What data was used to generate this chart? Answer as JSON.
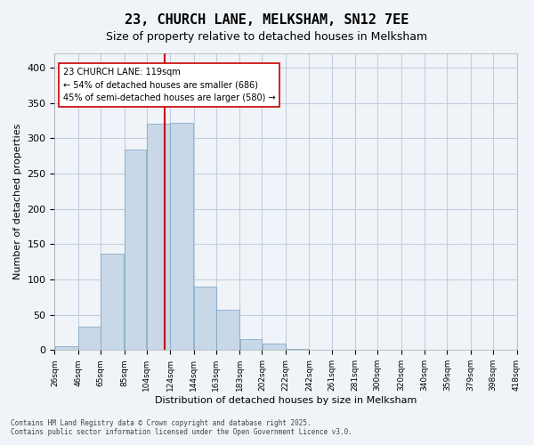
{
  "title_line1": "23, CHURCH LANE, MELKSHAM, SN12 7EE",
  "title_line2": "Size of property relative to detached houses in Melksham",
  "xlabel": "Distribution of detached houses by size in Melksham",
  "ylabel": "Number of detached properties",
  "bar_color": "#c8d8e8",
  "bar_edge_color": "#7aa0c0",
  "grid_color": "#c0cfe0",
  "background_color": "#f0f4f8",
  "vline_color": "#cc0000",
  "vline_x": 119,
  "annotation_text": "23 CHURCH LANE: 119sqm\n← 54% of detached houses are smaller (686)\n45% of semi-detached houses are larger (580) →",
  "annotation_box_color": "#ffffff",
  "annotation_box_edge": "#cc0000",
  "footer_line1": "Contains HM Land Registry data © Crown copyright and database right 2025.",
  "footer_line2": "Contains public sector information licensed under the Open Government Licence v3.0.",
  "bins": [
    26,
    46,
    65,
    85,
    104,
    124,
    144,
    163,
    183,
    202,
    222,
    242,
    261,
    281,
    300,
    320,
    340,
    359,
    379,
    398,
    418
  ],
  "bin_labels": [
    "26sqm",
    "46sqm",
    "65sqm",
    "85sqm",
    "104sqm",
    "124sqm",
    "144sqm",
    "163sqm",
    "183sqm",
    "202sqm",
    "222sqm",
    "242sqm",
    "261sqm",
    "281sqm",
    "300sqm",
    "320sqm",
    "340sqm",
    "359sqm",
    "379sqm",
    "398sqm",
    "418sqm"
  ],
  "counts": [
    5,
    33,
    137,
    284,
    320,
    322,
    90,
    57,
    16,
    9,
    2,
    1,
    0,
    1,
    0,
    1,
    0,
    0,
    1,
    0
  ],
  "ylim": [
    0,
    420
  ],
  "yticks": [
    0,
    50,
    100,
    150,
    200,
    250,
    300,
    350,
    400
  ]
}
